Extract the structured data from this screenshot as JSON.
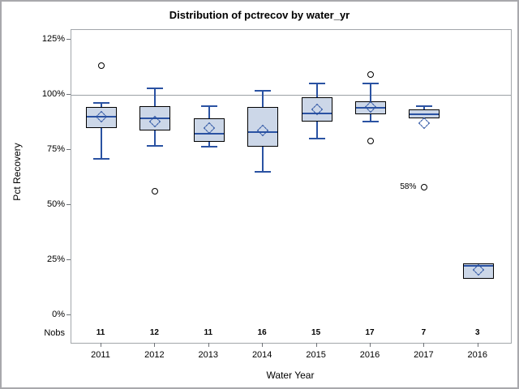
{
  "title": "Distribution of pctrecov by water_yr",
  "axes": {
    "y_label": "Pct Recovery",
    "x_label": "Water Year",
    "nobs_row_label": "Nobs"
  },
  "colors": {
    "box_fill": "#ccd7e8",
    "box_border": "#000000",
    "blue_line": "#2a52a2",
    "outlier_stroke": "#000000",
    "reference_line": "#9aa0a5",
    "axis_border": "#a2a6aa"
  },
  "chart_data": {
    "type": "boxplot",
    "title": "Distribution of pctrecov by water_yr",
    "xlabel": "Water Year",
    "ylabel": "Pct Recovery",
    "y_ticks": [
      {
        "value": 0,
        "label": "0%"
      },
      {
        "value": 25,
        "label": "25%"
      },
      {
        "value": 50,
        "label": "50%"
      },
      {
        "value": 75,
        "label": "75%"
      },
      {
        "value": 100,
        "label": "100%"
      },
      {
        "value": 125,
        "label": "125%"
      }
    ],
    "ylim": [
      -12.5,
      129.5
    ],
    "reference_line": 100,
    "grid": false,
    "legend": "none",
    "categories": [
      "2011",
      "2012",
      "2013",
      "2014",
      "2015",
      "2016",
      "2017",
      "2016"
    ],
    "nobs": [
      11,
      12,
      11,
      16,
      15,
      17,
      7,
      3
    ],
    "boxes": [
      {
        "category": "2011",
        "n": 11,
        "whisker_low": 71,
        "q1": 85,
        "median": 90,
        "q3": 94.5,
        "whisker_high": 96.5,
        "mean": 90,
        "outliers": [
          113
        ],
        "outlier_labels": []
      },
      {
        "category": "2012",
        "n": 12,
        "whisker_low": 77,
        "q1": 84,
        "median": 89.5,
        "q3": 95,
        "whisker_high": 103,
        "mean": 88,
        "outliers": [
          56
        ],
        "outlier_labels": []
      },
      {
        "category": "2013",
        "n": 11,
        "whisker_low": 76.5,
        "q1": 78.5,
        "median": 82.5,
        "q3": 89.5,
        "whisker_high": 95,
        "mean": 85,
        "outliers": [],
        "outlier_labels": []
      },
      {
        "category": "2014",
        "n": 16,
        "whisker_low": 65,
        "q1": 76.5,
        "median": 83,
        "q3": 94.5,
        "whisker_high": 102,
        "mean": 84,
        "outliers": [],
        "outlier_labels": []
      },
      {
        "category": "2015",
        "n": 15,
        "whisker_low": 80,
        "q1": 88,
        "median": 91.5,
        "q3": 99,
        "whisker_high": 105,
        "mean": 93.5,
        "outliers": [],
        "outlier_labels": []
      },
      {
        "category": "2016",
        "n": 17,
        "whisker_low": 88,
        "q1": 91,
        "median": 94,
        "q3": 97,
        "whisker_high": 105,
        "mean": 94.5,
        "outliers": [
          109,
          79
        ],
        "outlier_labels": [
          "",
          ""
        ]
      },
      {
        "category": "2017",
        "n": 7,
        "whisker_low": null,
        "q1": 89.5,
        "median": 91,
        "q3": 93.5,
        "whisker_high": 95,
        "mean": 87,
        "outliers": [
          58
        ],
        "outlier_labels": [
          "58%"
        ]
      },
      {
        "category": "2016",
        "n": 3,
        "whisker_low": null,
        "q1": 16.5,
        "median": 22.5,
        "q3": 23.5,
        "whisker_high": null,
        "mean": 20.5,
        "outliers": [],
        "outlier_labels": []
      }
    ]
  }
}
